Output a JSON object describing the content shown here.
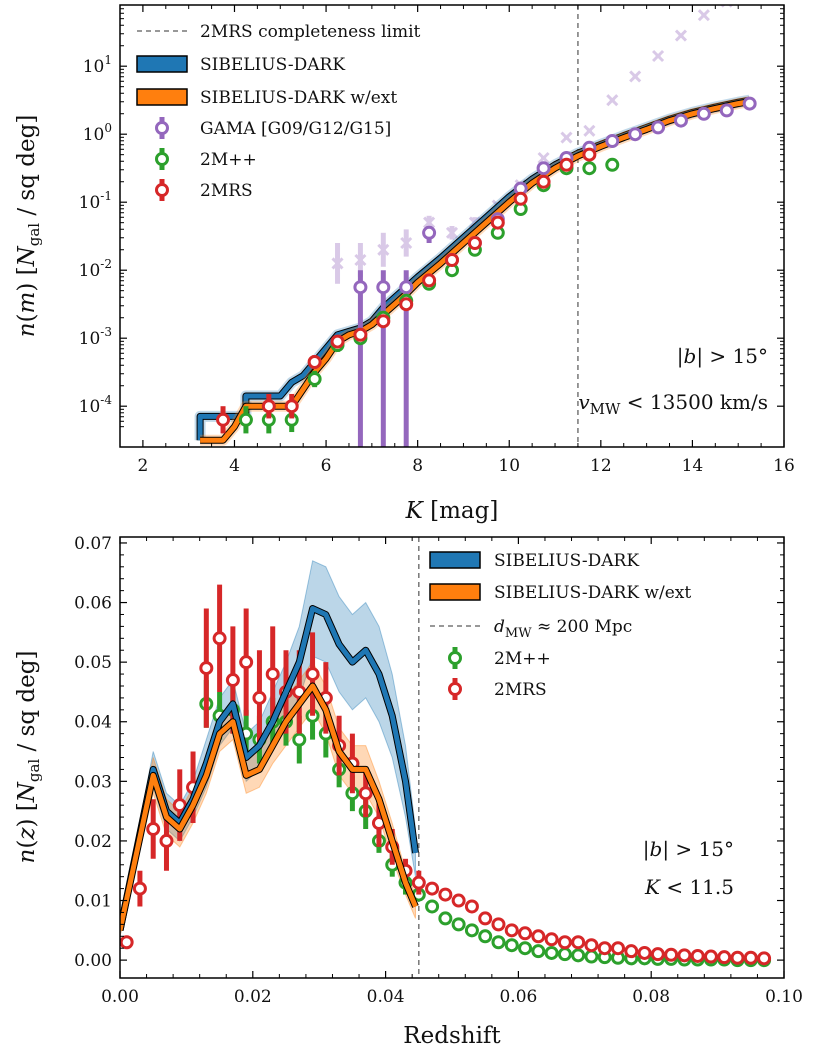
{
  "colors": {
    "blue": "#1f77b4",
    "orange": "#ff7f0e",
    "purple": "#9467bd",
    "green": "#2ca02c",
    "red": "#d62728",
    "limit": "#777777"
  },
  "chart_data": [
    {
      "type": "line",
      "xlabel": "K [mag]",
      "ylabel": "n(m) [N_gal / sq deg]",
      "xlim": [
        1.5,
        16
      ],
      "ylim_log10": [
        -4.6,
        1.9
      ],
      "y_scale": "log",
      "x_ticks": [
        "2",
        "4",
        "6",
        "8",
        "10",
        "12",
        "14",
        "16"
      ],
      "x_tick_values": [
        2,
        4,
        6,
        8,
        10,
        12,
        14,
        16
      ],
      "y_ticks": [
        "10^-4",
        "10^-3",
        "10^-2",
        "10^-1",
        "10^0",
        "10^1"
      ],
      "y_tick_values": [
        -4,
        -3,
        -2,
        -1,
        0,
        1
      ],
      "completeness_limit_x": 11.5,
      "legend_position": "top-left",
      "legend": [
        {
          "label": "2MRS completeness limit",
          "kind": "dashed",
          "color_key": "limit"
        },
        {
          "label": "SIBELIUS-DARK",
          "kind": "line",
          "color_key": "blue"
        },
        {
          "label": "SIBELIUS-DARK w/ext",
          "kind": "line",
          "color_key": "orange"
        },
        {
          "label": "GAMA [G09/G12/G15]",
          "kind": "marker",
          "color_key": "purple"
        },
        {
          "label": "2M++",
          "kind": "marker",
          "color_key": "green"
        },
        {
          "label": "2MRS",
          "kind": "marker",
          "color_key": "red"
        }
      ],
      "annotations": [
        "|b| > 15°",
        "v_MW < 13500 km/s"
      ],
      "series": [
        {
          "name": "SIBELIUS-DARK",
          "color_key": "blue",
          "x": [
            3.25,
            3.25,
            3.5,
            3.75,
            4.0,
            4.25,
            4.25,
            4.5,
            4.75,
            5.0,
            5.25,
            5.5,
            5.75,
            6.0,
            6.25,
            6.5,
            6.75,
            7.0,
            7.25,
            7.5,
            7.75,
            8.0,
            8.5,
            9.0,
            9.5,
            10.0,
            10.5,
            11.0,
            11.5,
            12.0,
            12.5,
            13.0,
            13.5,
            14.0,
            14.5,
            15.0,
            15.25
          ],
          "log10_y": [
            -4.5,
            -4.15,
            -4.15,
            -4.15,
            -4.15,
            -4.15,
            -3.85,
            -3.85,
            -3.85,
            -3.85,
            -3.65,
            -3.55,
            -3.35,
            -3.15,
            -2.95,
            -2.9,
            -2.85,
            -2.75,
            -2.55,
            -2.4,
            -2.25,
            -2.1,
            -1.82,
            -1.52,
            -1.22,
            -0.92,
            -0.66,
            -0.45,
            -0.28,
            -0.15,
            -0.02,
            0.1,
            0.22,
            0.32,
            0.4,
            0.47,
            0.5
          ]
        },
        {
          "name": "SIBELIUS-DARK w/ext",
          "color_key": "orange",
          "x": [
            3.25,
            3.5,
            3.75,
            4.0,
            4.25,
            4.5,
            4.75,
            5.0,
            5.25,
            5.5,
            5.75,
            6.0,
            6.25,
            6.5,
            6.75,
            7.0,
            7.25,
            7.5,
            7.75,
            8.0,
            8.5,
            9.0,
            9.5,
            10.0,
            10.5,
            11.0,
            11.5,
            12.0,
            12.5,
            13.0,
            13.5,
            14.0,
            14.5,
            15.0,
            15.25
          ],
          "log10_y": [
            -4.5,
            -4.5,
            -4.5,
            -4.3,
            -4.0,
            -4.0,
            -4.0,
            -4.0,
            -4.0,
            -3.75,
            -3.5,
            -3.3,
            -3.05,
            -2.95,
            -2.9,
            -2.8,
            -2.65,
            -2.5,
            -2.35,
            -2.18,
            -1.9,
            -1.6,
            -1.3,
            -1.0,
            -0.72,
            -0.5,
            -0.32,
            -0.18,
            -0.05,
            0.07,
            0.2,
            0.3,
            0.38,
            0.45,
            0.48
          ]
        },
        {
          "name": "GAMA [G09/G12/G15]",
          "color_key": "purple",
          "x": [
            6.75,
            7.25,
            7.75,
            8.25,
            8.75,
            9.25,
            9.75,
            10.25,
            10.75,
            11.25,
            11.75,
            12.25,
            12.75,
            13.25,
            13.75,
            14.25,
            14.75,
            15.25
          ],
          "log10_y": [
            -2.25,
            -2.25,
            -2.25,
            -1.45,
            -1.85,
            -1.6,
            -1.25,
            -0.8,
            -0.5,
            -0.35,
            -0.2,
            -0.1,
            0.0,
            0.1,
            0.2,
            0.3,
            0.35,
            0.45
          ],
          "err_lo": [
            2.4,
            2.4,
            2.4,
            0.15,
            0.2,
            0.15,
            0.1,
            0.05,
            0.05,
            0.05,
            0.05,
            0.03,
            0.03,
            0.03,
            0.03,
            0.03,
            0.03,
            0.03
          ],
          "err_hi": [
            0.25,
            0.25,
            0.25,
            0.1,
            0.1,
            0.08,
            0.05,
            0.03,
            0.03,
            0.03,
            0.03,
            0.03,
            0.03,
            0.03,
            0.03,
            0.03,
            0.03,
            0.03
          ]
        },
        {
          "name": "GAMA (faint, crosses)",
          "color_key": "purple",
          "x": [
            6.25,
            6.75,
            7.25,
            7.75,
            8.25,
            8.75,
            9.25,
            9.75,
            10.25,
            10.75,
            11.25,
            11.75,
            12.25,
            12.75,
            13.25,
            13.75,
            14.25,
            14.75
          ],
          "log10_y": [
            -1.9,
            -1.85,
            -1.7,
            -1.6,
            -1.3,
            -1.45,
            -1.3,
            -1.05,
            -0.75,
            -0.35,
            -0.05,
            0.05,
            0.5,
            0.85,
            1.15,
            1.45,
            1.75,
            1.95
          ],
          "err": [
            0.3,
            0.25,
            0.25,
            0.2,
            0.1,
            0.1,
            0.08,
            0.05,
            0.05,
            0.03,
            0.03,
            0.03,
            0.03,
            0.03,
            0.03,
            0.03,
            0.03,
            0.03
          ]
        },
        {
          "name": "2M++",
          "color_key": "green",
          "x": [
            4.25,
            4.75,
            5.25,
            5.75,
            6.25,
            6.75,
            7.25,
            7.75,
            8.25,
            8.75,
            9.25,
            9.75,
            10.25,
            10.75,
            11.25,
            11.75,
            12.25
          ],
          "log10_y": [
            -4.2,
            -4.2,
            -4.2,
            -3.6,
            -3.1,
            -3.0,
            -2.7,
            -2.45,
            -2.2,
            -2.0,
            -1.7,
            -1.45,
            -1.1,
            -0.75,
            -0.5,
            -0.5,
            -0.45
          ],
          "err": [
            0.2,
            0.2,
            0.18,
            0.12,
            0.1,
            0.08,
            0.07,
            0.06,
            0.05,
            0.04,
            0.03,
            0.03,
            0.02,
            0.02,
            0.02,
            0.02,
            0.02
          ]
        },
        {
          "name": "2MRS",
          "color_key": "red",
          "x": [
            3.75,
            4.75,
            5.25,
            5.75,
            6.25,
            6.75,
            7.25,
            7.75,
            8.25,
            8.75,
            9.25,
            9.75,
            10.25,
            10.75,
            11.25,
            11.75
          ],
          "log10_y": [
            -4.2,
            -4.0,
            -4.0,
            -3.35,
            -3.05,
            -2.95,
            -2.75,
            -2.5,
            -2.15,
            -1.85,
            -1.6,
            -1.3,
            -0.95,
            -0.7,
            -0.45,
            -0.3
          ],
          "err": [
            0.2,
            0.18,
            0.18,
            0.1,
            0.08,
            0.07,
            0.06,
            0.05,
            0.05,
            0.04,
            0.03,
            0.03,
            0.02,
            0.02,
            0.02,
            0.02
          ]
        }
      ]
    },
    {
      "type": "line",
      "xlabel": "Redshift",
      "ylabel": "n(z) [N_gal / sq deg]",
      "xlim": [
        0.0,
        0.1
      ],
      "ylim": [
        -0.003,
        0.071
      ],
      "x_ticks": [
        "0.00",
        "0.02",
        "0.04",
        "0.06",
        "0.08",
        "0.10"
      ],
      "x_tick_values": [
        0.0,
        0.02,
        0.04,
        0.06,
        0.08,
        0.1
      ],
      "y_ticks": [
        "0.00",
        "0.01",
        "0.02",
        "0.03",
        "0.04",
        "0.05",
        "0.06",
        "0.07"
      ],
      "y_tick_values": [
        0.0,
        0.01,
        0.02,
        0.03,
        0.04,
        0.05,
        0.06,
        0.07
      ],
      "distance_limit_x": 0.045,
      "legend_position": "top-right",
      "legend": [
        {
          "label": "SIBELIUS-DARK",
          "kind": "line",
          "color_key": "blue"
        },
        {
          "label": "SIBELIUS-DARK w/ext",
          "kind": "line",
          "color_key": "orange"
        },
        {
          "label": "d_MW ≈ 200 Mpc",
          "kind": "dashed",
          "color_key": "limit"
        },
        {
          "label": "2M++",
          "kind": "marker",
          "color_key": "green"
        },
        {
          "label": "2MRS",
          "kind": "marker",
          "color_key": "red"
        }
      ],
      "annotations": [
        "|b| > 15°",
        "K < 11.5"
      ],
      "series": [
        {
          "name": "SIBELIUS-DARK",
          "color_key": "blue",
          "x": [
            0.0,
            0.005,
            0.007,
            0.009,
            0.011,
            0.013,
            0.015,
            0.017,
            0.019,
            0.021,
            0.023,
            0.025,
            0.027,
            0.029,
            0.031,
            0.033,
            0.035,
            0.037,
            0.039,
            0.041,
            0.043,
            0.0445
          ],
          "y": [
            0.005,
            0.032,
            0.025,
            0.023,
            0.027,
            0.033,
            0.04,
            0.043,
            0.034,
            0.036,
            0.04,
            0.045,
            0.05,
            0.059,
            0.058,
            0.053,
            0.05,
            0.052,
            0.048,
            0.041,
            0.03,
            0.018
          ],
          "band": [
            0.001,
            0.003,
            0.003,
            0.003,
            0.003,
            0.004,
            0.004,
            0.004,
            0.004,
            0.004,
            0.005,
            0.005,
            0.006,
            0.008,
            0.008,
            0.008,
            0.008,
            0.008,
            0.008,
            0.007,
            0.006,
            0.004
          ]
        },
        {
          "name": "SIBELIUS-DARK w/ext",
          "color_key": "orange",
          "x": [
            0.0,
            0.005,
            0.007,
            0.009,
            0.011,
            0.013,
            0.015,
            0.017,
            0.019,
            0.021,
            0.023,
            0.025,
            0.027,
            0.029,
            0.031,
            0.033,
            0.035,
            0.037,
            0.039,
            0.041,
            0.043,
            0.0445
          ],
          "y": [
            0.005,
            0.031,
            0.024,
            0.022,
            0.026,
            0.031,
            0.038,
            0.04,
            0.031,
            0.032,
            0.036,
            0.04,
            0.043,
            0.046,
            0.042,
            0.035,
            0.032,
            0.032,
            0.027,
            0.02,
            0.013,
            0.009
          ],
          "band": [
            0.001,
            0.003,
            0.003,
            0.003,
            0.003,
            0.003,
            0.003,
            0.003,
            0.003,
            0.003,
            0.003,
            0.004,
            0.004,
            0.004,
            0.004,
            0.004,
            0.004,
            0.004,
            0.003,
            0.003,
            0.002,
            0.002
          ]
        },
        {
          "name": "2M++",
          "color_key": "green",
          "x": [
            0.013,
            0.015,
            0.017,
            0.019,
            0.021,
            0.023,
            0.025,
            0.027,
            0.029,
            0.031,
            0.033,
            0.035,
            0.037,
            0.039,
            0.041,
            0.043,
            0.045,
            0.047,
            0.049,
            0.051,
            0.053,
            0.055,
            0.057,
            0.059,
            0.061,
            0.063,
            0.065,
            0.067,
            0.069,
            0.071,
            0.073,
            0.075,
            0.077,
            0.079,
            0.081,
            0.083,
            0.085,
            0.087,
            0.089,
            0.091,
            0.093,
            0.095,
            0.097
          ],
          "y": [
            0.043,
            0.041,
            0.042,
            0.038,
            0.037,
            0.04,
            0.04,
            0.037,
            0.041,
            0.038,
            0.032,
            0.028,
            0.025,
            0.02,
            0.016,
            0.013,
            0.011,
            0.009,
            0.007,
            0.006,
            0.005,
            0.004,
            0.003,
            0.0025,
            0.002,
            0.0015,
            0.0012,
            0.001,
            0.0008,
            0.0006,
            0.0005,
            0.0004,
            0.0003,
            0.0003,
            0.0002,
            0.0002,
            0.0001,
            0.0001,
            0.0001,
            0.0001,
            0.0,
            0.0,
            0.0
          ],
          "err": [
            0.004,
            0.004,
            0.004,
            0.004,
            0.004,
            0.004,
            0.004,
            0.004,
            0.004,
            0.004,
            0.003,
            0.003,
            0.003,
            0.002,
            0.002,
            0.002,
            0.001,
            0.001,
            0.001,
            0.001,
            0.0008,
            0.0006,
            0.0005,
            0.0004,
            0.0003,
            0.0003,
            0.0002,
            0.0002,
            0.0002,
            0.0001,
            0.0001,
            0.0001,
            0.0001,
            0.0001,
            0.0,
            0.0,
            0.0,
            0.0,
            0.0,
            0.0,
            0.0,
            0.0,
            0.0
          ]
        },
        {
          "name": "2MRS",
          "color_key": "red",
          "x": [
            0.001,
            0.003,
            0.005,
            0.007,
            0.009,
            0.011,
            0.013,
            0.015,
            0.017,
            0.019,
            0.021,
            0.023,
            0.025,
            0.027,
            0.029,
            0.031,
            0.033,
            0.035,
            0.037,
            0.039,
            0.041,
            0.043,
            0.045,
            0.047,
            0.049,
            0.051,
            0.053,
            0.055,
            0.057,
            0.059,
            0.061,
            0.063,
            0.065,
            0.067,
            0.069,
            0.071,
            0.073,
            0.075,
            0.077,
            0.079,
            0.081,
            0.083,
            0.085,
            0.087,
            0.089,
            0.091,
            0.093,
            0.095,
            0.097
          ],
          "y": [
            0.003,
            0.012,
            0.022,
            0.02,
            0.026,
            0.029,
            0.049,
            0.054,
            0.047,
            0.05,
            0.044,
            0.048,
            0.045,
            0.045,
            0.048,
            0.044,
            0.036,
            0.033,
            0.028,
            0.023,
            0.019,
            0.015,
            0.013,
            0.012,
            0.011,
            0.01,
            0.009,
            0.007,
            0.006,
            0.005,
            0.0045,
            0.004,
            0.0035,
            0.003,
            0.003,
            0.0025,
            0.002,
            0.002,
            0.0015,
            0.0012,
            0.001,
            0.0009,
            0.0008,
            0.0007,
            0.0006,
            0.0005,
            0.0004,
            0.0004,
            0.0003
          ],
          "err": [
            0.001,
            0.003,
            0.005,
            0.005,
            0.006,
            0.006,
            0.01,
            0.009,
            0.009,
            0.009,
            0.008,
            0.008,
            0.007,
            0.007,
            0.007,
            0.006,
            0.005,
            0.005,
            0.004,
            0.004,
            0.003,
            0.002,
            0.002,
            0.001,
            0.001,
            0.001,
            0.001,
            0.0008,
            0.0007,
            0.0006,
            0.0005,
            0.0005,
            0.0004,
            0.0004,
            0.0003,
            0.0003,
            0.0003,
            0.0002,
            0.0002,
            0.0002,
            0.0002,
            0.0001,
            0.0001,
            0.0001,
            0.0001,
            0.0001,
            0.0001,
            0.0001,
            0.0001
          ]
        }
      ]
    }
  ]
}
